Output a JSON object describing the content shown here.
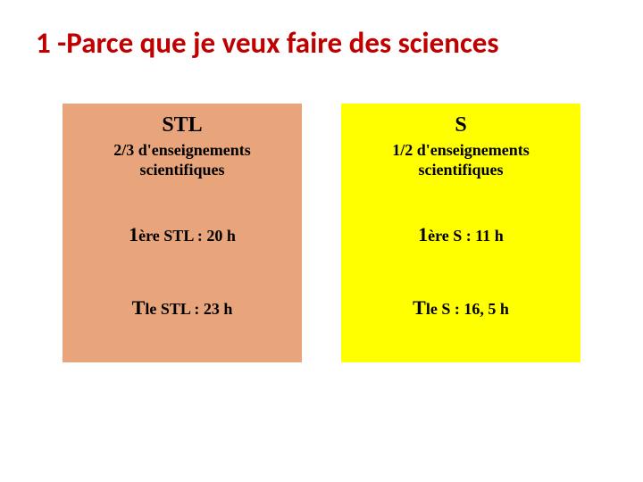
{
  "title": {
    "text": "1 -Parce que je veux faire des sciences",
    "color": "#c00000"
  },
  "columns": {
    "left": {
      "bg": "#e8a47a",
      "heading": "STL",
      "sub": "2/3 d'enseignements scientifiques",
      "row1_big": "1",
      "row1_rest": "ère STL : 20 h",
      "row2_big": "T",
      "row2_rest": "le STL : 23 h"
    },
    "right": {
      "bg": "#ffff00",
      "heading": "S",
      "sub": "1/2 d'enseignements scientifiques",
      "row1_big": "1",
      "row1_rest": "ère S : 11 h",
      "row2_big": "T",
      "row2_rest": "le S : 16, 5 h"
    }
  }
}
